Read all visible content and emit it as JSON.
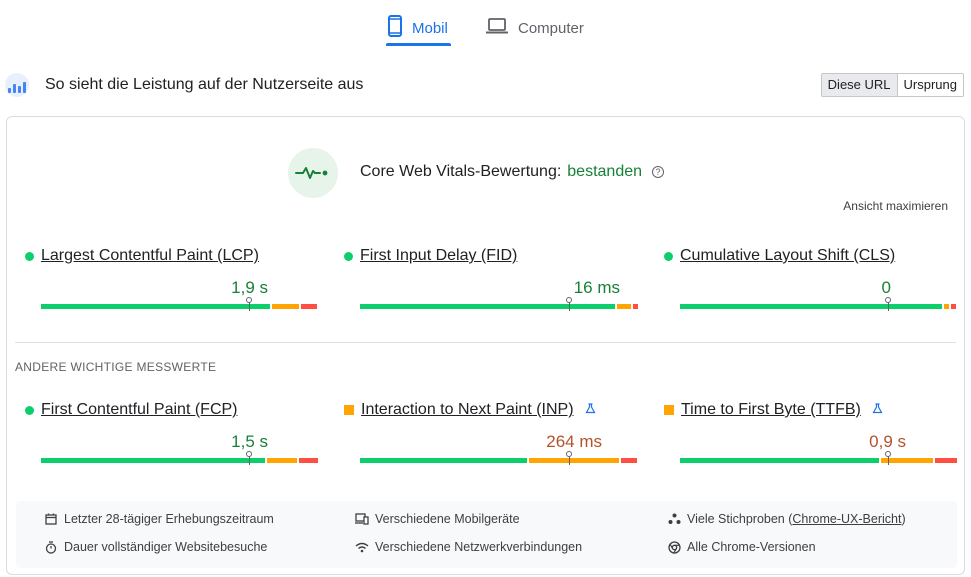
{
  "device_tabs": {
    "mobile": "Mobil",
    "computer": "Computer",
    "active": "mobile",
    "accent_color": "#1a73e8"
  },
  "header": {
    "title": "So sieht die Leistung auf der Nutzerseite aus",
    "toggle": {
      "this_url": "Diese URL",
      "origin": "Ursprung",
      "selected": "Diese URL"
    }
  },
  "assessment": {
    "label": "Core Web Vitals-Bewertung:",
    "result": "bestanden",
    "help_icon": "?",
    "expand": "Ansicht maximieren"
  },
  "core_metrics": [
    {
      "name": "Largest Contentful Paint (LCP)",
      "value": "1,9 s",
      "status": "good",
      "distribution": {
        "good": 0.84,
        "needs_improvement": 0.1,
        "poor": 0.06
      }
    },
    {
      "name": "First Input Delay (FID)",
      "value": "16 ms",
      "status": "good",
      "distribution": {
        "good": 0.93,
        "needs_improvement": 0.05,
        "poor": 0.02
      }
    },
    {
      "name": "Cumulative Layout Shift (CLS)",
      "value": "0",
      "status": "good",
      "distribution": {
        "good": 0.96,
        "needs_improvement": 0.02,
        "poor": 0.02
      }
    }
  ],
  "other_section_label": "ANDERE WICHTIGE MESSWERTE",
  "other_metrics": [
    {
      "name": "First Contentful Paint (FCP)",
      "value": "1,5 s",
      "status": "good",
      "experimental": false,
      "distribution": {
        "good": 0.82,
        "needs_improvement": 0.11,
        "poor": 0.07
      }
    },
    {
      "name": "Interaction to Next Paint (INP)",
      "value": "264 ms",
      "status": "needs_improvement",
      "experimental": true,
      "distribution": {
        "good": 0.61,
        "needs_improvement": 0.33,
        "poor": 0.06
      }
    },
    {
      "name": "Time to First Byte (TTFB)",
      "value": "0,9 s",
      "status": "needs_improvement",
      "experimental": true,
      "distribution": {
        "good": 0.73,
        "needs_improvement": 0.19,
        "poor": 0.08
      }
    }
  ],
  "status_colors": {
    "good": "#0cce6b",
    "needs_improvement": "#ffa400",
    "poor": "#ff4e42"
  },
  "footer": {
    "period": "Letzter 28-tägiger Erhebungszeitraum",
    "visits": "Dauer vollständiger Websitebesuche",
    "devices": "Verschiedene Mobilgeräte",
    "network": "Verschiedene Netzwerkverbindungen",
    "samples_prefix": "Viele Stichproben (",
    "samples_link": "Chrome-UX-Bericht",
    "samples_suffix": ")",
    "versions": "Alle Chrome-Versionen"
  }
}
